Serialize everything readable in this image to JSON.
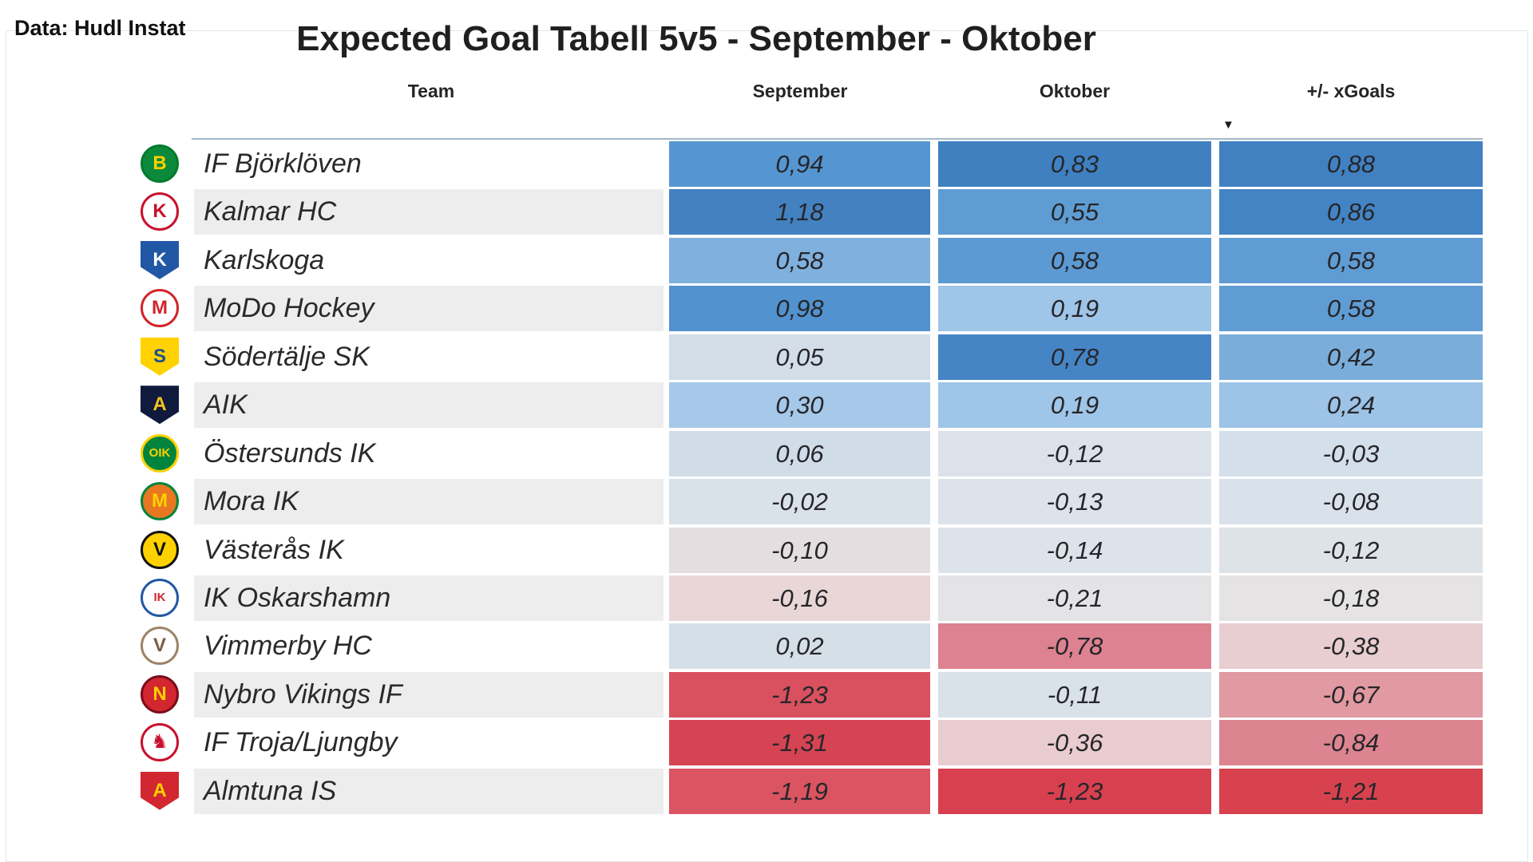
{
  "source_label": "Data: Hudl Instat",
  "title": "Expected Goal Tabell 5v5 - September - Oktober",
  "columns": [
    "Team",
    "September",
    "Oktober",
    "+/- xGoals"
  ],
  "sort": {
    "column": "+/- xGoals",
    "direction": "descending",
    "icon": "▼"
  },
  "colors": {
    "header_line": "#a3b8cb",
    "row_stripe": "#ededee",
    "positive_max_blue": "#3f80c1",
    "negative_max_red": "#d8404f",
    "text": "#26262a"
  },
  "teams": [
    {
      "name": "IF Björklöven",
      "logo": {
        "shape": "circle",
        "bg": "#0a8a3a",
        "ring": "#067a2e",
        "fg": "#ffd100",
        "text": "B"
      },
      "cells": [
        {
          "text": "0,94",
          "bg": "#5596d2"
        },
        {
          "text": "0,83",
          "bg": "#3f80c1"
        },
        {
          "text": "0,88",
          "bg": "#4181c2"
        }
      ]
    },
    {
      "name": "Kalmar HC",
      "logo": {
        "shape": "circle",
        "bg": "#ffffff",
        "ring": "#c8102e",
        "fg": "#c8102e",
        "text": "K"
      },
      "cells": [
        {
          "text": "1,18",
          "bg": "#4381c1"
        },
        {
          "text": "0,55",
          "bg": "#5f9cd4"
        },
        {
          "text": "0,86",
          "bg": "#4384c4"
        }
      ]
    },
    {
      "name": "Karlskoga",
      "logo": {
        "shape": "shield",
        "bg": "#2257a5",
        "ring": "#16386e",
        "fg": "#ffffff",
        "text": "K"
      },
      "cells": [
        {
          "text": "0,58",
          "bg": "#7fb0de"
        },
        {
          "text": "0,58",
          "bg": "#5c9ad3"
        },
        {
          "text": "0,58",
          "bg": "#5f9cd3"
        }
      ]
    },
    {
      "name": "MoDo Hockey",
      "logo": {
        "shape": "circle",
        "bg": "#ffffff",
        "ring": "#d2232a",
        "fg": "#d2232a",
        "text": "M"
      },
      "cells": [
        {
          "text": "0,98",
          "bg": "#5192cf"
        },
        {
          "text": "0,19",
          "bg": "#9fc5e8"
        },
        {
          "text": "0,58",
          "bg": "#5f9cd3"
        }
      ]
    },
    {
      "name": "Södertälje SK",
      "logo": {
        "shape": "shield",
        "bg": "#ffd200",
        "ring": "#1d4f91",
        "fg": "#1d4f91",
        "text": "S"
      },
      "cells": [
        {
          "text": "0,05",
          "bg": "#d2dde8"
        },
        {
          "text": "0,78",
          "bg": "#4685c5"
        },
        {
          "text": "0,42",
          "bg": "#7aadda"
        }
      ]
    },
    {
      "name": "AIK",
      "logo": {
        "shape": "shield",
        "bg": "#0f1a3c",
        "ring": "#0b1426",
        "fg": "#f5c518",
        "text": "A"
      },
      "cells": [
        {
          "text": "0,30",
          "bg": "#a6c8e9"
        },
        {
          "text": "0,19",
          "bg": "#9fc5e8"
        },
        {
          "text": "0,24",
          "bg": "#9dc3e6"
        }
      ]
    },
    {
      "name": "Östersunds IK",
      "logo": {
        "shape": "circle",
        "bg": "#00843d",
        "ring": "#ffd100",
        "fg": "#ffd100",
        "text": "OIK"
      },
      "cells": [
        {
          "text": "0,06",
          "bg": "#d0dce8"
        },
        {
          "text": "-0,12",
          "bg": "#dbe2ea"
        },
        {
          "text": "-0,03",
          "bg": "#d3dfeb"
        }
      ]
    },
    {
      "name": "Mora IK",
      "logo": {
        "shape": "circle",
        "bg": "#e87722",
        "ring": "#00843d",
        "fg": "#ffd100",
        "text": "M"
      },
      "cells": [
        {
          "text": "-0,02",
          "bg": "#d9e1e9"
        },
        {
          "text": "-0,13",
          "bg": "#dce3ea"
        },
        {
          "text": "-0,08",
          "bg": "#d9e2ea"
        }
      ]
    },
    {
      "name": "Västerås IK",
      "logo": {
        "shape": "circle",
        "bg": "#ffd100",
        "ring": "#111111",
        "fg": "#111111",
        "text": "V"
      },
      "cells": [
        {
          "text": "-0,10",
          "bg": "#e4dee0"
        },
        {
          "text": "-0,14",
          "bg": "#dde3ea"
        },
        {
          "text": "-0,12",
          "bg": "#dee3e8"
        }
      ]
    },
    {
      "name": "IK Oskarshamn",
      "logo": {
        "shape": "circle",
        "bg": "#ffffff",
        "ring": "#2257a5",
        "fg": "#d22730",
        "text": "IK"
      },
      "cells": [
        {
          "text": "-0,16",
          "bg": "#e9d7d8"
        },
        {
          "text": "-0,21",
          "bg": "#e4e4e6"
        },
        {
          "text": "-0,18",
          "bg": "#e5e3e4"
        }
      ]
    },
    {
      "name": "Vimmerby HC",
      "logo": {
        "shape": "circle",
        "bg": "#ffffff",
        "ring": "#9c8466",
        "fg": "#7a5c3e",
        "text": "V"
      },
      "cells": [
        {
          "text": "0,02",
          "bg": "#d5dfe8"
        },
        {
          "text": "-0,78",
          "bg": "#dd8290"
        },
        {
          "text": "-0,38",
          "bg": "#e8cdd1"
        }
      ]
    },
    {
      "name": "Nybro Vikings IF",
      "logo": {
        "shape": "circle",
        "bg": "#d22730",
        "ring": "#7a0c1c",
        "fg": "#ffd100",
        "text": "N"
      },
      "cells": [
        {
          "text": "-1,23",
          "bg": "#d9515f"
        },
        {
          "text": "-0,11",
          "bg": "#d9e1e9"
        },
        {
          "text": "-0,67",
          "bg": "#e199a2"
        }
      ]
    },
    {
      "name": "IF Troja/Ljungby",
      "logo": {
        "shape": "circle",
        "bg": "#ffffff",
        "ring": "#c8102e",
        "fg": "#c8102e",
        "text": "♞"
      },
      "cells": [
        {
          "text": "-1,31",
          "bg": "#d54453"
        },
        {
          "text": "-0,36",
          "bg": "#e9ccd0"
        },
        {
          "text": "-0,84",
          "bg": "#dd8491"
        }
      ]
    },
    {
      "name": "Almtuna IS",
      "logo": {
        "shape": "shield",
        "bg": "#d22730",
        "ring": "#7a0c1c",
        "fg": "#ffd100",
        "text": "A"
      },
      "cells": [
        {
          "text": "-1,19",
          "bg": "#da5462"
        },
        {
          "text": "-1,23",
          "bg": "#d8404f"
        },
        {
          "text": "-1,21",
          "bg": "#d8424f"
        }
      ]
    }
  ],
  "chart_data": {
    "type": "table",
    "title": "Expected Goal Tabell 5v5 - September - Oktober",
    "source": "Data: Hudl Instat",
    "columns": [
      "Team",
      "September",
      "Oktober",
      "+/- xGoals"
    ],
    "sorted_by": "+/- xGoals",
    "sort_direction": "descending",
    "number_format": "comma decimal, two decimals",
    "color_scale": "diverging per column: blue = high/positive, white = near zero, red = low/negative",
    "rows": [
      [
        "IF Björklöven",
        0.94,
        0.83,
        0.88
      ],
      [
        "Kalmar HC",
        1.18,
        0.55,
        0.86
      ],
      [
        "Karlskoga",
        0.58,
        0.58,
        0.58
      ],
      [
        "MoDo Hockey",
        0.98,
        0.19,
        0.58
      ],
      [
        "Södertälje SK",
        0.05,
        0.78,
        0.42
      ],
      [
        "AIK",
        0.3,
        0.19,
        0.24
      ],
      [
        "Östersunds IK",
        0.06,
        -0.12,
        -0.03
      ],
      [
        "Mora IK",
        -0.02,
        -0.13,
        -0.08
      ],
      [
        "Västerås IK",
        -0.1,
        -0.14,
        -0.12
      ],
      [
        "IK Oskarshamn",
        -0.16,
        -0.21,
        -0.18
      ],
      [
        "Vimmerby HC",
        0.02,
        -0.78,
        -0.38
      ],
      [
        "Nybro Vikings IF",
        -1.23,
        -0.11,
        -0.67
      ],
      [
        "IF Troja/Ljungby",
        -1.31,
        -0.36,
        -0.84
      ],
      [
        "Almtuna IS",
        -1.19,
        -1.23,
        -1.21
      ]
    ]
  }
}
